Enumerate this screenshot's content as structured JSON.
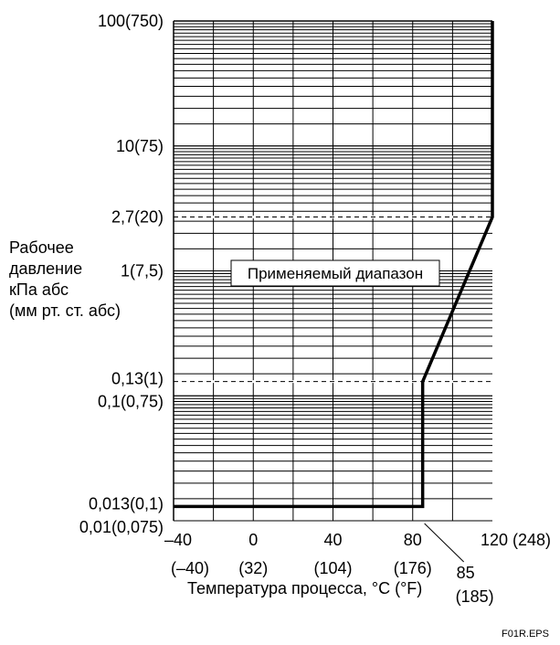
{
  "chart_data": {
    "type": "line",
    "ylabel": [
      "Рабочее",
      "давление",
      "кПа абс",
      "(мм рт. ст. абс)"
    ],
    "xlabel": "Температура процесса, °C (°F)",
    "xlim": [
      -40,
      120
    ],
    "ylim": [
      0.01,
      100
    ],
    "y_scale": "log",
    "grid": true,
    "x_ticks": [
      {
        "value": -40,
        "label": "–40",
        "sub": "(–40)"
      },
      {
        "value": 0,
        "label": "0",
        "sub": "(32)"
      },
      {
        "value": 40,
        "label": "40",
        "sub": "(104)"
      },
      {
        "value": 80,
        "label": "80",
        "sub": "(176)"
      },
      {
        "value": 120,
        "label": "120 (248)",
        "sub": ""
      }
    ],
    "x_marker": {
      "value": 85,
      "label": "85",
      "sub": "(185)"
    },
    "y_ticks": [
      {
        "value": 100,
        "label": "100(750)"
      },
      {
        "value": 10,
        "label": "10(75)"
      },
      {
        "value": 2.7,
        "label": "2,7(20)",
        "dashed": true
      },
      {
        "value": 1,
        "label": "1(7,5)"
      },
      {
        "value": 0.13,
        "label": "0,13(1)",
        "dashed": true
      },
      {
        "value": 0.1,
        "label": "0,1(0,75)"
      },
      {
        "value": 0.013,
        "label": "0,013(0,1)"
      },
      {
        "value": 0.01,
        "label": "0,01(0,075)"
      }
    ],
    "boundary": [
      {
        "x": -40,
        "y": 0.013
      },
      {
        "x": 85,
        "y": 0.013
      },
      {
        "x": 85,
        "y": 0.13
      },
      {
        "x": 120,
        "y": 2.7
      },
      {
        "x": 120,
        "y": 100
      }
    ],
    "annotation": "Применяемый диапазон"
  },
  "figure_code": "F01R.EPS"
}
